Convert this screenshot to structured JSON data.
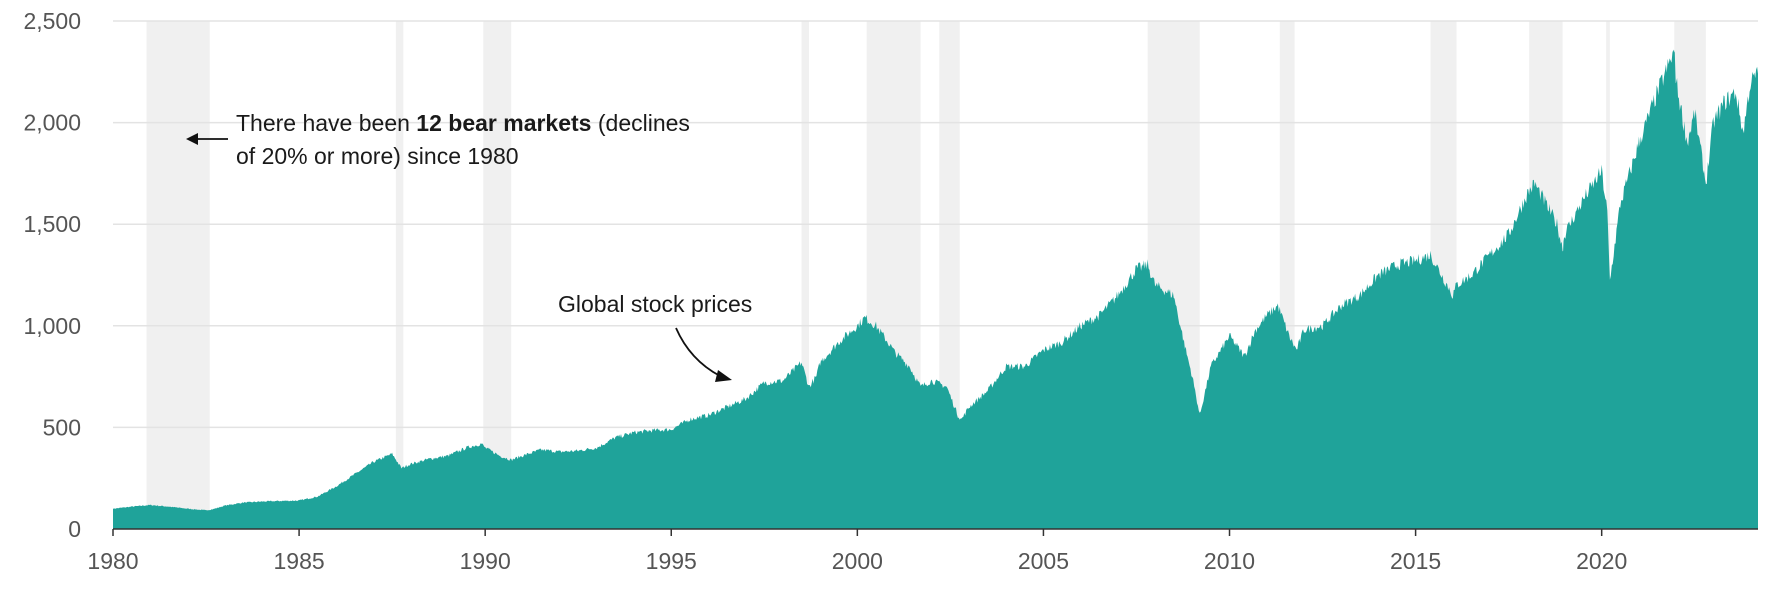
{
  "chart_data": {
    "type": "area",
    "title": "",
    "xlabel": "",
    "ylabel": "",
    "xlim": [
      1980,
      2024.2
    ],
    "ylim": [
      0,
      2500
    ],
    "x_ticks": [
      1980,
      1985,
      1990,
      1995,
      2000,
      2005,
      2010,
      2015,
      2020
    ],
    "y_ticks": [
      0,
      500,
      1000,
      1500,
      2000,
      2500
    ],
    "x_tick_labels": [
      "1980",
      "1985",
      "1990",
      "1995",
      "2000",
      "2005",
      "2010",
      "2015",
      "2020"
    ],
    "y_tick_labels": [
      "0",
      "500",
      "1,000",
      "1,500",
      "2,000",
      "2,500"
    ],
    "grid": "horizontal",
    "series": [
      {
        "name": "Global stock prices",
        "color": "#1fa39a",
        "x": [
          1980.0,
          1980.5,
          1981.0,
          1981.5,
          1982.0,
          1982.5,
          1982.7,
          1983.0,
          1983.5,
          1984.0,
          1984.5,
          1985.0,
          1985.5,
          1986.0,
          1986.5,
          1987.0,
          1987.5,
          1987.75,
          1988.0,
          1988.5,
          1989.0,
          1989.5,
          1989.9,
          1990.0,
          1990.4,
          1990.7,
          1991.0,
          1991.5,
          1992.0,
          1992.5,
          1993.0,
          1993.5,
          1994.0,
          1994.5,
          1995.0,
          1995.5,
          1996.0,
          1996.5,
          1997.0,
          1997.5,
          1998.0,
          1998.5,
          1998.7,
          1998.9,
          1999.0,
          1999.5,
          2000.0,
          2000.2,
          2000.5,
          2000.9,
          2001.0,
          2001.4,
          2001.7,
          2002.0,
          2002.4,
          2002.7,
          2002.8,
          2003.0,
          2003.5,
          2004.0,
          2004.5,
          2005.0,
          2005.5,
          2006.0,
          2006.5,
          2007.0,
          2007.5,
          2007.8,
          2008.0,
          2008.5,
          2008.8,
          2009.0,
          2009.2,
          2009.5,
          2010.0,
          2010.4,
          2010.7,
          2011.0,
          2011.3,
          2011.6,
          2011.8,
          2012.0,
          2012.5,
          2013.0,
          2013.5,
          2014.0,
          2014.5,
          2015.0,
          2015.4,
          2015.7,
          2016.0,
          2016.1,
          2016.5,
          2017.0,
          2017.5,
          2018.0,
          2018.2,
          2018.5,
          2018.8,
          2018.95,
          2019.0,
          2019.5,
          2020.0,
          2020.15,
          2020.22,
          2020.5,
          2021.0,
          2021.5,
          2021.95,
          2022.0,
          2022.3,
          2022.5,
          2022.8,
          2023.0,
          2023.3,
          2023.6,
          2023.8,
          2024.0,
          2024.2
        ],
        "values": [
          100,
          110,
          118,
          110,
          100,
          92,
          98,
          115,
          130,
          135,
          138,
          140,
          160,
          210,
          270,
          330,
          370,
          300,
          320,
          345,
          360,
          400,
          420,
          400,
          360,
          340,
          360,
          390,
          380,
          385,
          400,
          450,
          475,
          485,
          490,
          540,
          560,
          600,
          640,
          720,
          730,
          820,
          700,
          750,
          820,
          920,
          1000,
          1040,
          1000,
          900,
          870,
          800,
          700,
          730,
          700,
          560,
          540,
          600,
          680,
          800,
          800,
          880,
          920,
          1000,
          1050,
          1150,
          1280,
          1300,
          1200,
          1150,
          900,
          750,
          560,
          800,
          950,
          850,
          980,
          1050,
          1100,
          950,
          880,
          980,
          1000,
          1100,
          1150,
          1250,
          1300,
          1320,
          1350,
          1250,
          1150,
          1200,
          1250,
          1350,
          1450,
          1650,
          1700,
          1600,
          1500,
          1380,
          1450,
          1620,
          1760,
          1560,
          1220,
          1600,
          1900,
          2150,
          2350,
          2200,
          1900,
          2050,
          1700,
          2000,
          2100,
          2150,
          1950,
          2200,
          2240
        ]
      }
    ],
    "bear_markets": [
      {
        "start": 1980.9,
        "end": 1982.6
      },
      {
        "start": 1987.6,
        "end": 1987.8
      },
      {
        "start": 1989.95,
        "end": 1990.7
      },
      {
        "start": 1998.5,
        "end": 1998.7
      },
      {
        "start": 2000.25,
        "end": 2001.7
      },
      {
        "start": 2002.2,
        "end": 2002.75
      },
      {
        "start": 2007.8,
        "end": 2009.2
      },
      {
        "start": 2011.35,
        "end": 2011.75
      },
      {
        "start": 2015.4,
        "end": 2016.1
      },
      {
        "start": 2018.05,
        "end": 2018.95
      },
      {
        "start": 2020.12,
        "end": 2020.22
      },
      {
        "start": 2021.95,
        "end": 2022.8
      }
    ],
    "annotations": {
      "bear_note_prefix": "There have been ",
      "bear_note_bold": "12 bear markets",
      "bear_note_suffix": " (declines",
      "bear_note_line2": "of 20% or more) since 1980",
      "series_label": "Global stock prices"
    },
    "colors": {
      "area": "#1fa39a",
      "shade": "#f0f0f0",
      "grid": "#e3e3e3",
      "axis": "#333333",
      "tick_text": "#555555",
      "annotation_text": "#1a1a1a"
    }
  }
}
